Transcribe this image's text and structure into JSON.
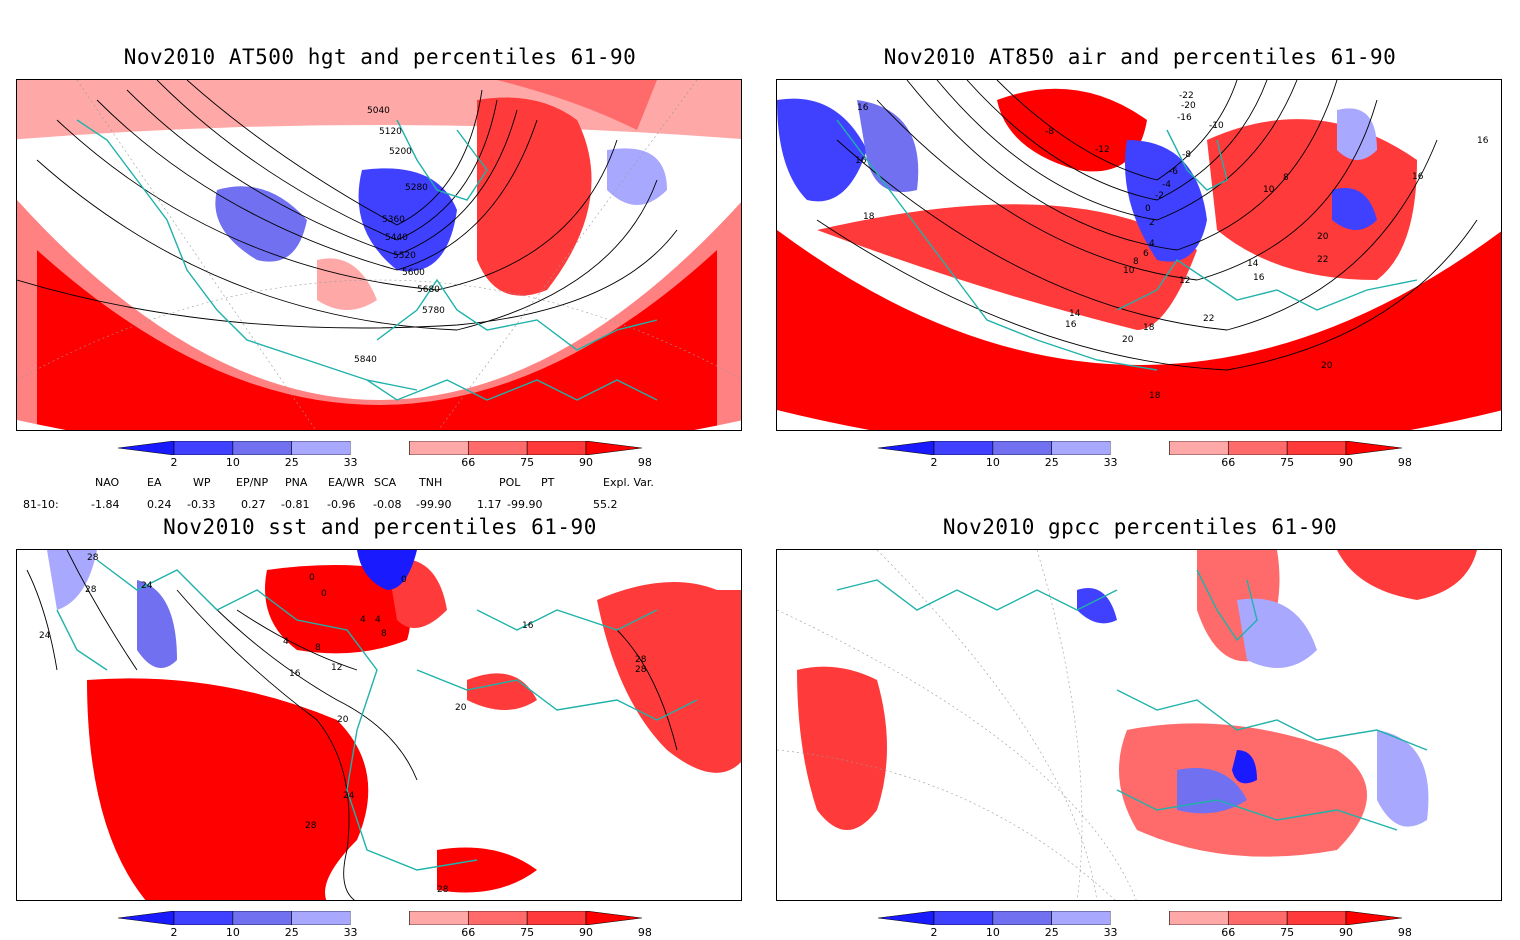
{
  "panels": [
    {
      "title": "Nov2010 AT500 hgt and percentiles 61-90",
      "contour_labels": [
        "5040",
        "5120",
        "5200",
        "5280",
        "5360",
        "5440",
        "5520",
        "5600",
        "5680",
        "5780",
        "5840"
      ]
    },
    {
      "title": "Nov2010 AT850 air and percentiles 61-90",
      "contour_labels": [
        "-22",
        "-20",
        "-16",
        "-12",
        "-8",
        "-10",
        "-8",
        "-6",
        "-4",
        "-2",
        "0",
        "2",
        "4",
        "6",
        "8",
        "10",
        "12",
        "14",
        "16",
        "16",
        "16",
        "16",
        "18",
        "18",
        "20",
        "20",
        "22",
        "22",
        "20",
        "18",
        "16",
        "14",
        "16",
        "10",
        "8"
      ]
    },
    {
      "title": "Nov2010 sst and percentiles 61-90",
      "contour_labels": [
        "28",
        "24",
        "24",
        "28",
        "0",
        "0",
        "0",
        "4",
        "4",
        "4",
        "8",
        "8",
        "12",
        "16",
        "20",
        "24",
        "28",
        "28",
        "16",
        "20",
        "28",
        "28"
      ]
    },
    {
      "title": "Nov2010 gpcc percentiles 61-90",
      "contour_labels": []
    }
  ],
  "colorbar": {
    "labels": [
      "2",
      "10",
      "25",
      "33",
      "66",
      "75",
      "90",
      "98"
    ],
    "colors": [
      "#1a1aff",
      "#4040ff",
      "#7070f0",
      "#a8a8ff",
      "#ffffff",
      "#ffa8a8",
      "#ff6b6b",
      "#ff3a3a",
      "#ff0000"
    ]
  },
  "indices": {
    "headers": [
      "NAO",
      "EA",
      "WP",
      "EP/NP",
      "PNA",
      "EA/WR",
      "SCA",
      "TNH",
      "POL",
      "PT",
      "Expl. Var."
    ],
    "row_label": "81-10:",
    "values": [
      "-1.84",
      "0.24",
      "-0.33",
      "0.27",
      "-0.81",
      "-0.96",
      "-0.08",
      "-99.90",
      "1.17",
      "-99.90",
      "55.2"
    ]
  },
  "colors": {
    "coast": "#20b2aa",
    "contour": "#000000",
    "red": "#ff0000",
    "blue": "#3c3cff"
  }
}
